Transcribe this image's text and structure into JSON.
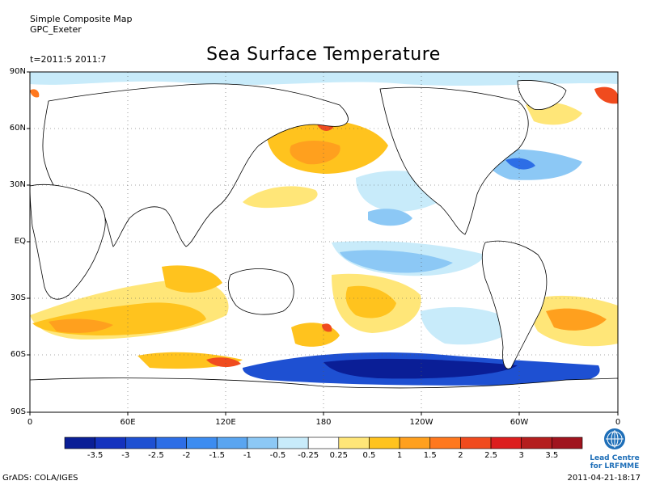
{
  "header": {
    "line1": "Simple Composite Map",
    "line2": "GPC_Exeter",
    "time_range": "t=2011:5 2011:7"
  },
  "title": "Sea Surface Temperature",
  "axes": {
    "lat_labels": [
      "90N",
      "60N",
      "30N",
      "EQ",
      "30S",
      "60S",
      "90S"
    ],
    "lon_labels": [
      "0",
      "60E",
      "120E",
      "180",
      "120W",
      "60W",
      "0"
    ]
  },
  "colorbar": {
    "labels": [
      "-3.5",
      "-3",
      "-2.5",
      "-2",
      "-1.5",
      "-1",
      "-0.5",
      "-0.25",
      "0.25",
      "0.5",
      "1",
      "1.5",
      "2",
      "2.5",
      "3",
      "3.5"
    ],
    "colors": [
      "#0a1e96",
      "#1432be",
      "#1e50d2",
      "#2d6ee6",
      "#3c8cf0",
      "#5aa5f0",
      "#8cc8f5",
      "#c8ebfa",
      "#ffffff",
      "#ffe678",
      "#ffc31e",
      "#ffa01e",
      "#ff781e",
      "#f04b1e",
      "#dc1e1e",
      "#b41e1e",
      "#a0141e"
    ]
  },
  "footer": {
    "left": "GrADS: COLA/IGES",
    "right": "2011-04-21-18:17"
  },
  "logo": {
    "name": "wmo-globe-icon",
    "line1": "Lead Centre",
    "line2": "for LRFMME"
  }
}
